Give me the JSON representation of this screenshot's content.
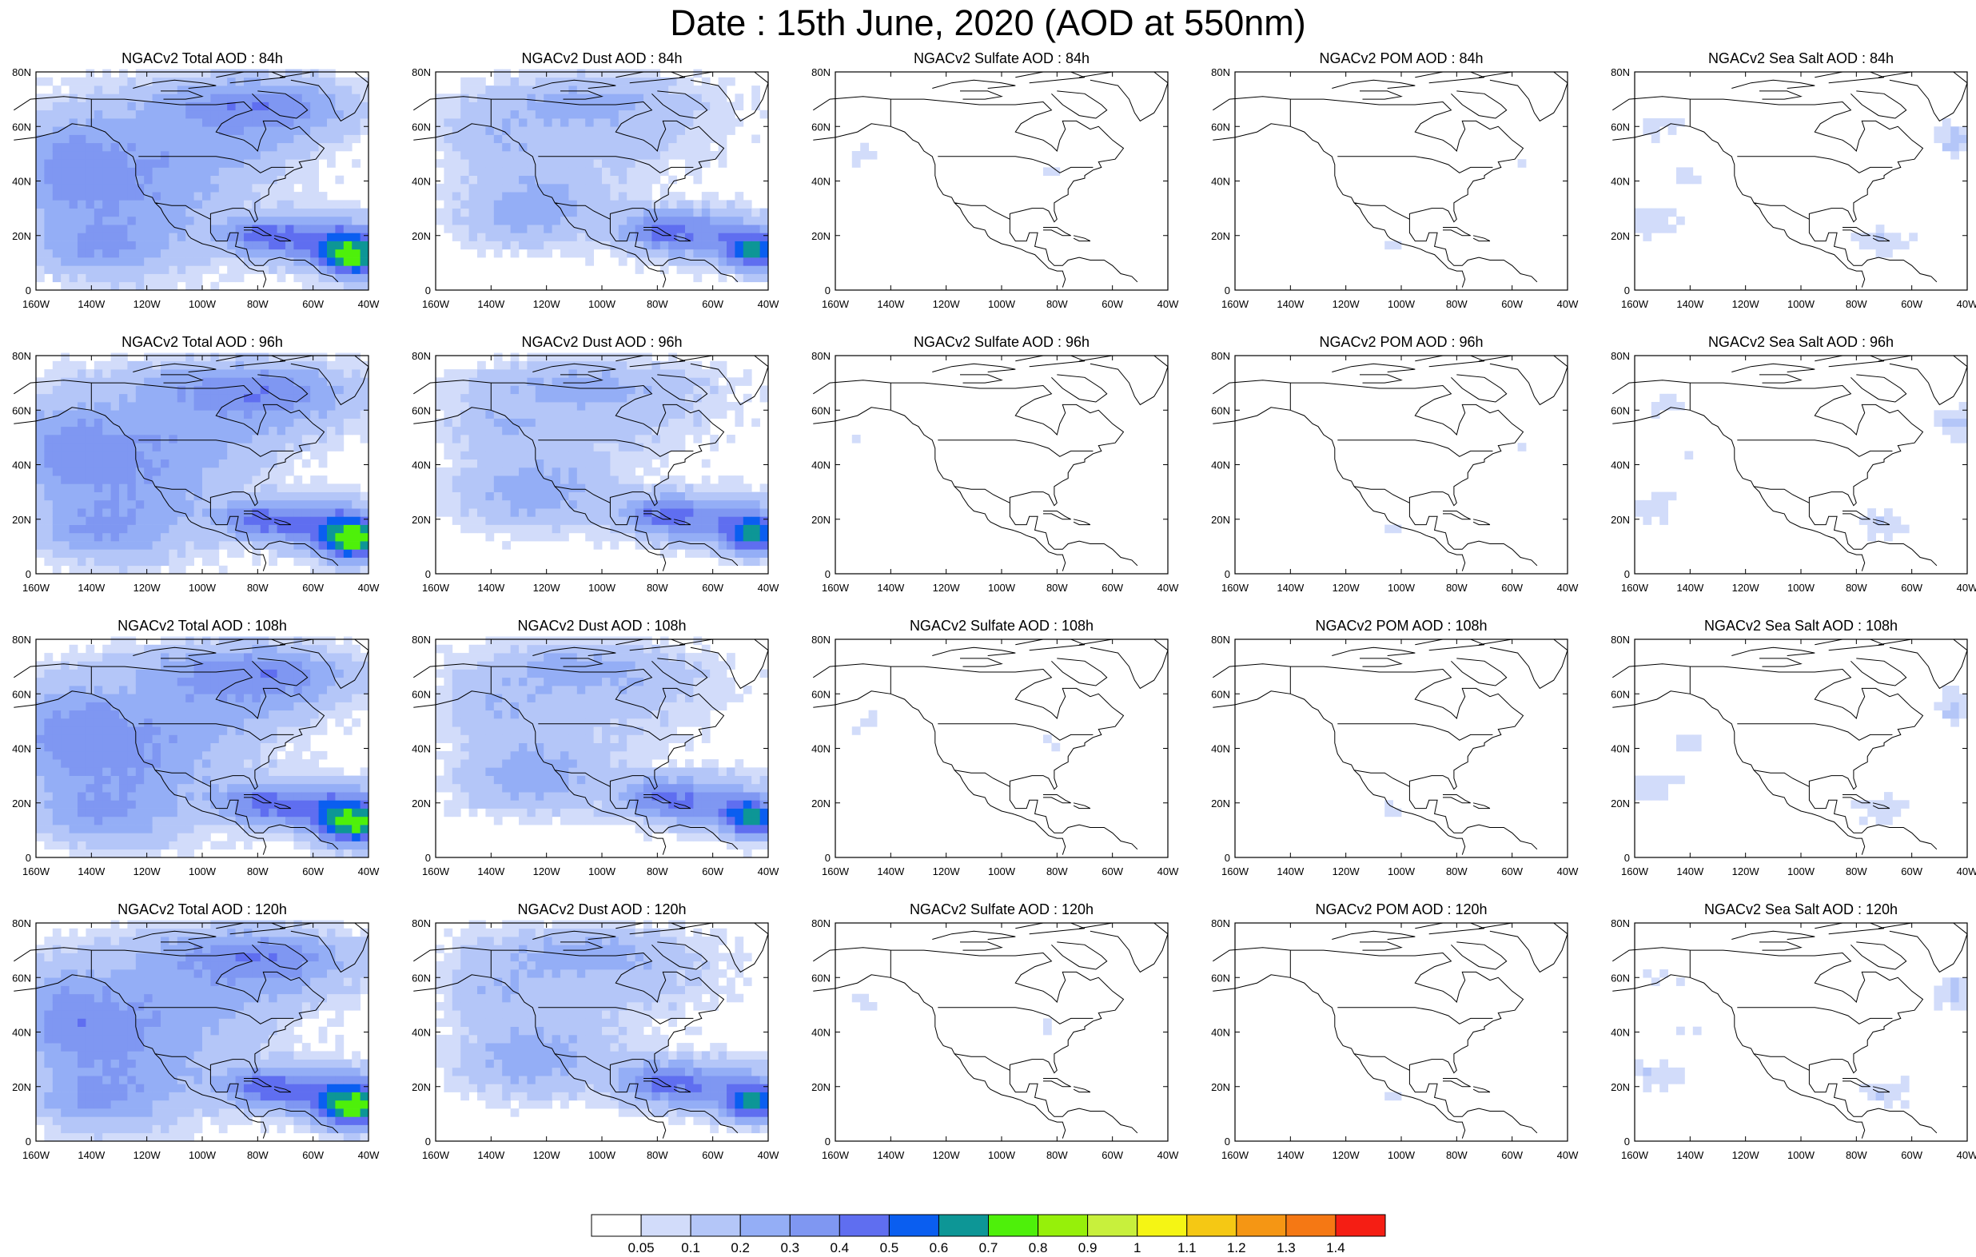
{
  "title": "Date : 15th June, 2020 (AOD at 550nm)",
  "columns": [
    {
      "key": "total",
      "title_prefix": "NGACv2 Total AOD : "
    },
    {
      "key": "dust",
      "title_prefix": "NGACv2 Dust AOD : "
    },
    {
      "key": "sulfate",
      "title_prefix": "NGACv2 Sulfate AOD : "
    },
    {
      "key": "pom",
      "title_prefix": "NGACv2 POM AOD : "
    },
    {
      "key": "seasalt",
      "title_prefix": "NGACv2 Sea Salt AOD : "
    }
  ],
  "rows": [
    {
      "hour": "84h",
      "titles": [
        "NGACv2 Total AOD : 84h",
        "NGACv2 Dust AOD : 84h",
        "NGACv2 Sulfate AOD : 84h",
        "NGACv2 POM AOD : 84h",
        "NGACv2 Sea Salt AOD : 84h"
      ]
    },
    {
      "hour": "96h",
      "titles": [
        "NGACv2 Total AOD : 96h",
        "NGACv2 Dust AOD : 96h",
        "NGACv2 Sulfate AOD : 96h",
        "NGACv2 POM AOD : 96h",
        "NGACv2 Sea Salt AOD : 96h"
      ]
    },
    {
      "hour": "108h",
      "titles": [
        "NGACv2 Total AOD : 108h",
        "NGACv2 Dust AOD : 108h",
        "NGACv2 Sulfate AOD : 108h",
        "NGACv2 POM AOD : 108h",
        "NGACv2 Sea Salt AOD : 108h"
      ]
    },
    {
      "hour": "120h",
      "titles": [
        "NGACv2 Total AOD : 120h",
        "NGACv2 Dust AOD : 120h",
        "NGACv2 Sulfate AOD : 120h",
        "NGACv2 POM AOD : 120h",
        "NGACv2 Sea Salt  AOD : 120h"
      ]
    }
  ],
  "map": {
    "lon_range": [
      -160,
      -40
    ],
    "lat_range": [
      0,
      80
    ],
    "lon_ticks": [
      "160W",
      "140W",
      "120W",
      "100W",
      "80W",
      "60W",
      "40W"
    ],
    "lat_ticks": [
      "0",
      "20N",
      "40N",
      "60N",
      "80N"
    ],
    "lon_tick_values": [
      -160,
      -140,
      -120,
      -100,
      -80,
      -60,
      -40
    ],
    "lat_tick_values": [
      0,
      20,
      40,
      60,
      80
    ]
  },
  "colorbar": {
    "labels": [
      "0.05",
      "0.1",
      "0.2",
      "0.3",
      "0.4",
      "0.5",
      "0.6",
      "0.7",
      "0.8",
      "0.9",
      "1",
      "1.1",
      "1.2",
      "1.3",
      "1.4"
    ],
    "colors": [
      "#ffffff",
      "#d2dcfa",
      "#b4c6f8",
      "#94aef6",
      "#7f97f2",
      "#5f6ef0",
      "#0a5ef0",
      "#0d9696",
      "#4ef00a",
      "#96f00a",
      "#c8f03c",
      "#f5f514",
      "#f5c814",
      "#f59614",
      "#f57814",
      "#f51e14"
    ]
  },
  "fields": {
    "total": {
      "blobs": [
        [
          -150,
          45,
          22,
          20,
          0.28
        ],
        [
          -120,
          30,
          30,
          25,
          0.22
        ],
        [
          -100,
          55,
          40,
          20,
          0.18
        ],
        [
          -70,
          65,
          30,
          12,
          0.2
        ],
        [
          -55,
          18,
          22,
          10,
          0.38
        ],
        [
          -45,
          12,
          12,
          8,
          0.55
        ],
        [
          -80,
          20,
          14,
          7,
          0.32
        ],
        [
          -140,
          15,
          22,
          10,
          0.2
        ],
        [
          -90,
          70,
          40,
          8,
          0.15
        ]
      ]
    },
    "dust": {
      "blobs": [
        [
          -125,
          30,
          28,
          14,
          0.26
        ],
        [
          -100,
          60,
          45,
          18,
          0.15
        ],
        [
          -60,
          20,
          25,
          10,
          0.32
        ],
        [
          -45,
          14,
          10,
          7,
          0.5
        ],
        [
          -140,
          55,
          18,
          10,
          0.12
        ],
        [
          -80,
          22,
          14,
          7,
          0.25
        ],
        [
          -110,
          70,
          40,
          8,
          0.14
        ]
      ]
    },
    "sulfate": {
      "blobs": [
        [
          -150,
          50,
          6,
          4,
          0.07
        ],
        [
          -82,
          42,
          4,
          4,
          0.06
        ]
      ]
    },
    "pom": {
      "blobs": [
        [
          -103,
          17,
          4,
          3,
          0.07
        ],
        [
          -55,
          47,
          3,
          2,
          0.06
        ]
      ]
    },
    "seasalt": {
      "blobs": [
        [
          -155,
          25,
          14,
          6,
          0.09
        ],
        [
          -45,
          55,
          8,
          7,
          0.11
        ],
        [
          -70,
          18,
          12,
          6,
          0.09
        ],
        [
          -150,
          60,
          10,
          5,
          0.07
        ],
        [
          -140,
          42,
          6,
          4,
          0.07
        ]
      ]
    }
  }
}
